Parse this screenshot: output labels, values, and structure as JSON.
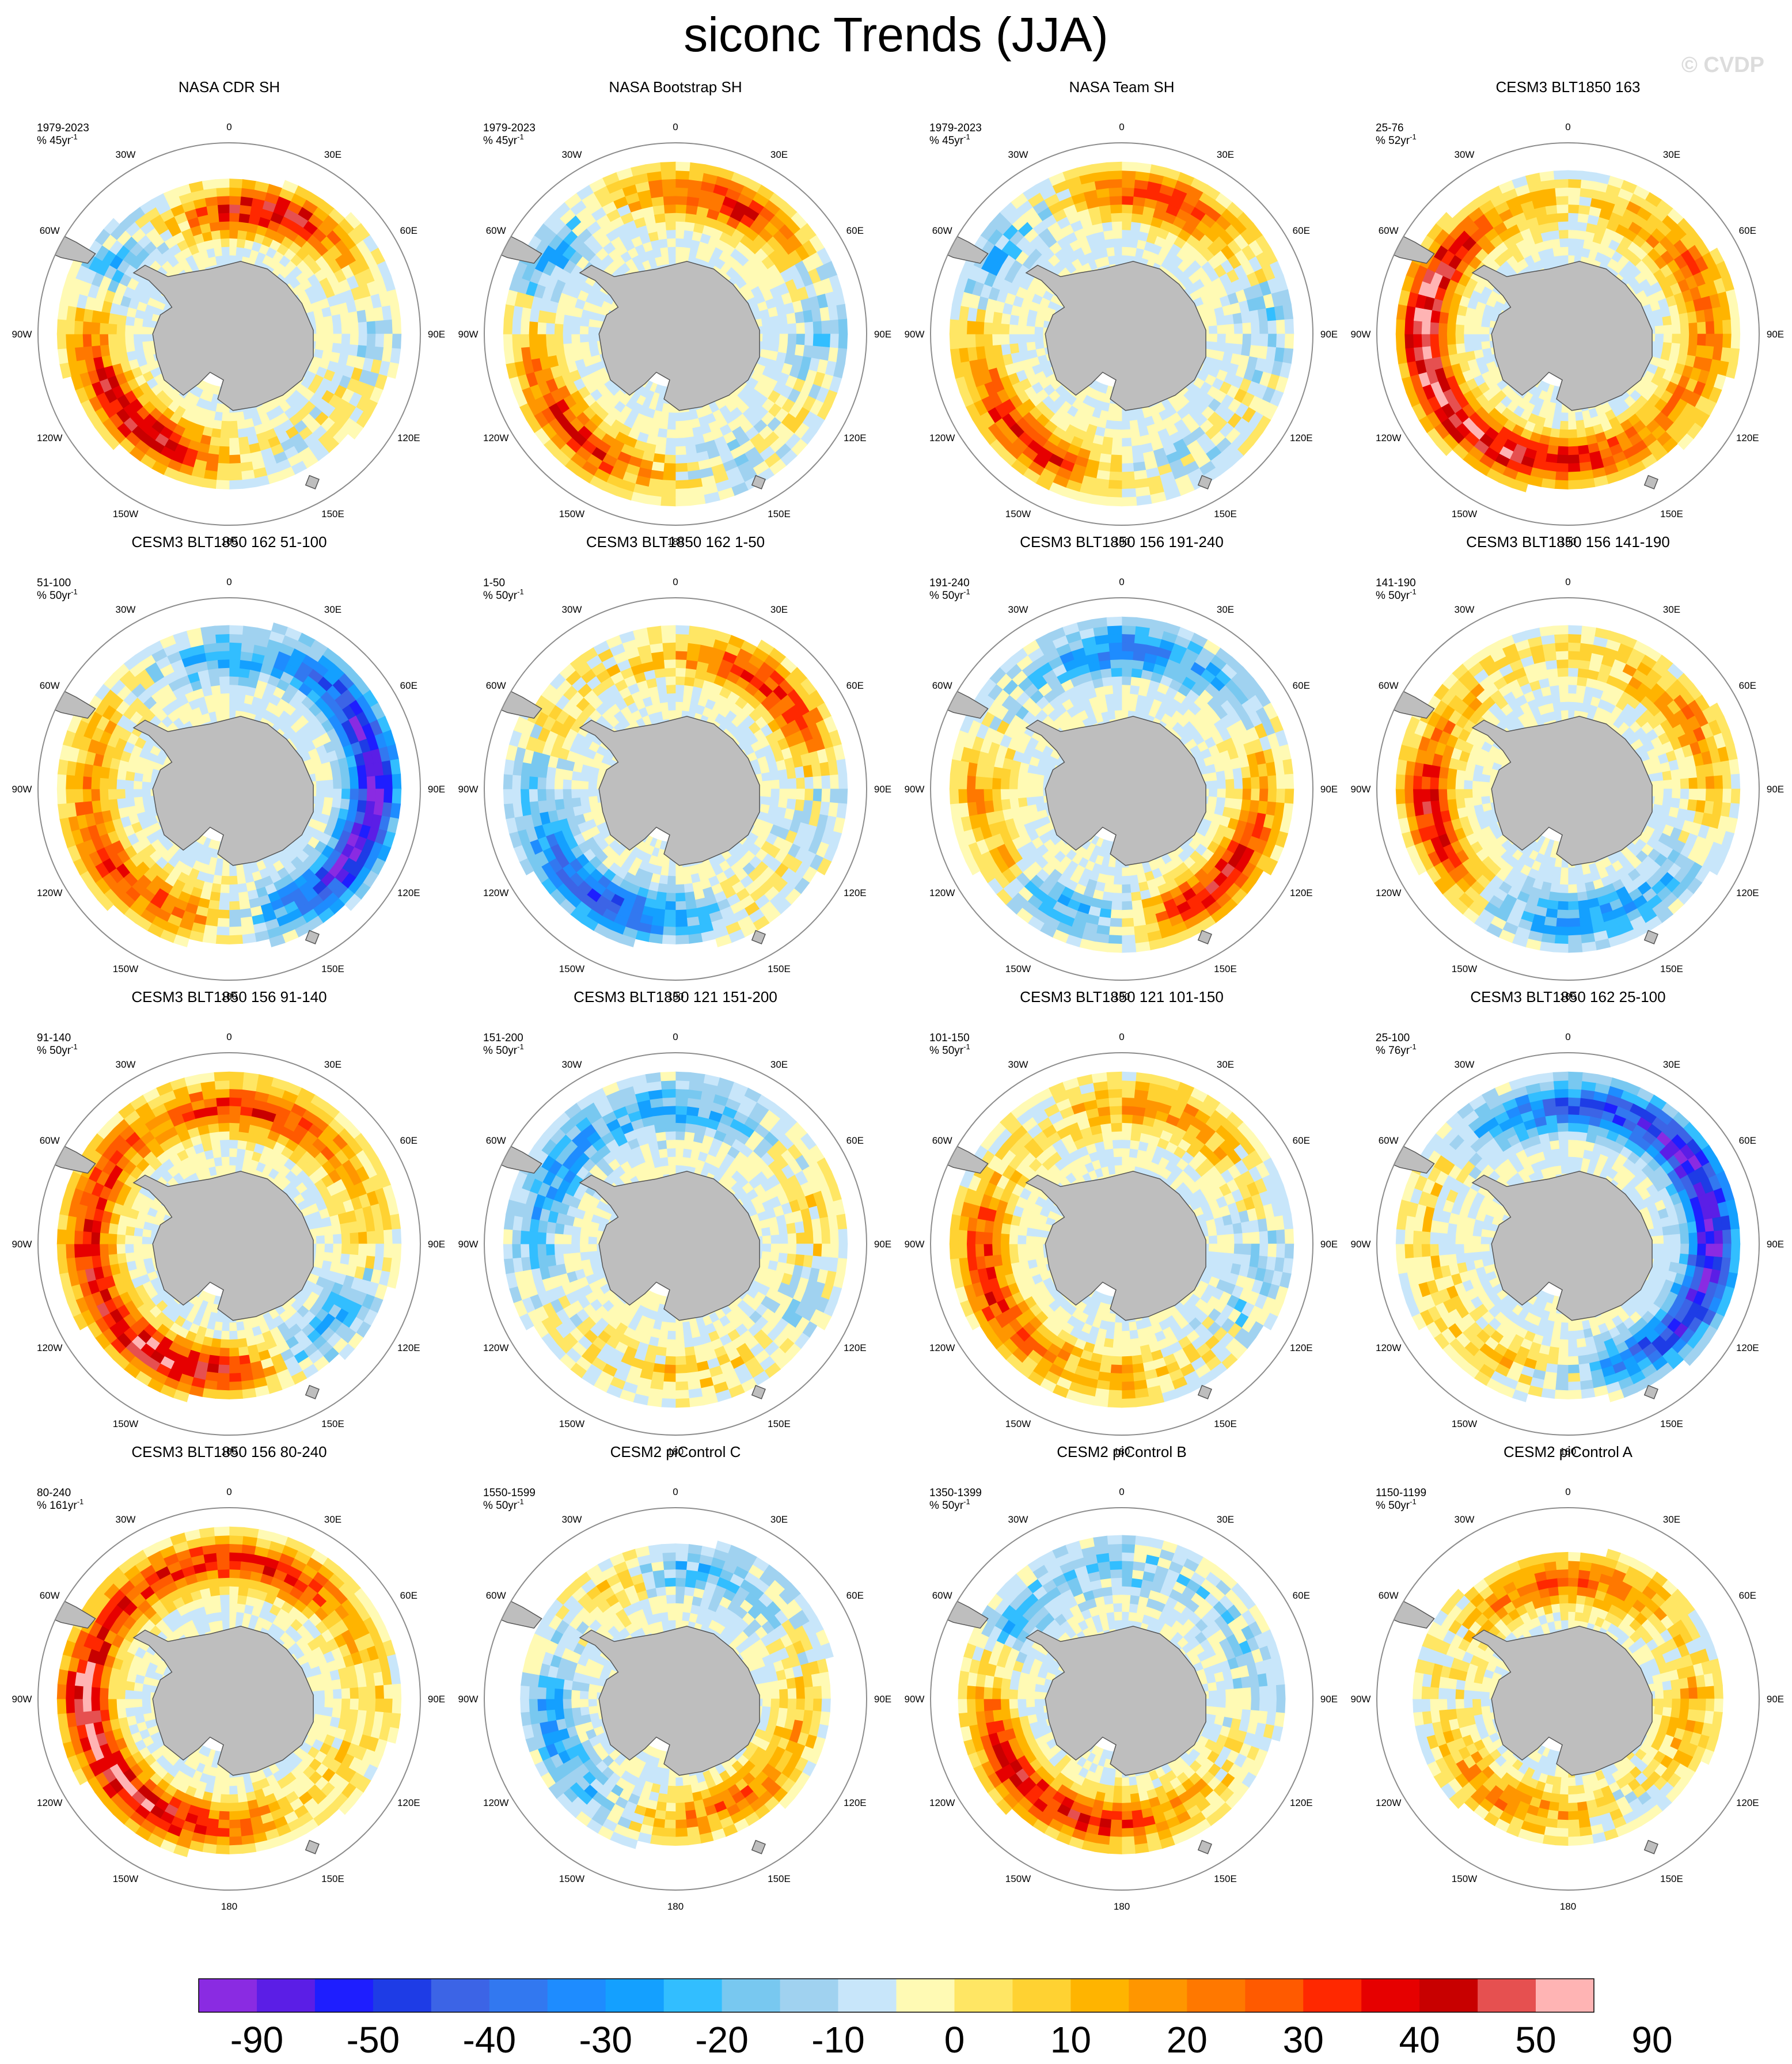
{
  "title": "siconc Trends (JJA)",
  "watermark": "© CVDP",
  "chart_data": {
    "type": "heatmap",
    "projection": "south-polar-stereographic",
    "variable": "siconc",
    "season": "JJA",
    "longitude_labels": [
      "0",
      "30E",
      "60E",
      "90E",
      "120E",
      "150E",
      "180",
      "150W",
      "120W",
      "90W",
      "60W",
      "30W"
    ],
    "colorbar": {
      "levels": [
        "-90",
        "-50",
        "-40",
        "-30",
        "-20",
        "-10",
        "0",
        "10",
        "20",
        "30",
        "40",
        "50",
        "90"
      ],
      "colors": [
        "#8a2be2",
        "#5b1ee6",
        "#1e1eff",
        "#1e3ce6",
        "#3c64e6",
        "#3278f0",
        "#1e8cff",
        "#14a0ff",
        "#32beff",
        "#78c8f0",
        "#a0d2f0",
        "#c8e6fa",
        "#fffab4",
        "#ffe664",
        "#ffd232",
        "#ffb400",
        "#ff9600",
        "#ff7800",
        "#ff5a00",
        "#ff2800",
        "#e60000",
        "#c80000",
        "#e65050",
        "#ffb4b4"
      ]
    },
    "panels": [
      {
        "title": "NASA CDR SH",
        "period": "1979-2023",
        "units": "% 45yr",
        "units_sup": "-1",
        "pattern": {
          "gain": [
            0.9,
            0.9,
            0.4,
            0.3,
            0.2,
            0.1,
            0.3,
            0.9,
            0.9,
            0.5,
            0.2,
            0.6
          ],
          "loss": [
            0.2,
            0.1,
            0.2,
            0.4,
            0.1,
            0.1,
            0.1,
            0.1,
            0.1,
            0.1,
            0.5,
            0.5
          ],
          "extent": [
            0.8,
            0.85,
            0.9,
            0.9,
            0.85,
            0.8,
            0.8,
            0.82,
            0.85,
            0.9,
            0.88,
            0.8
          ],
          "wave": 1
        }
      },
      {
        "title": "NASA Bootstrap SH",
        "period": "1979-2023",
        "units": "% 45yr",
        "units_sup": "-1",
        "pattern": {
          "gain": [
            0.8,
            0.9,
            0.4,
            0.3,
            0.3,
            0.1,
            0.3,
            0.8,
            0.8,
            0.4,
            0.2,
            0.5
          ],
          "loss": [
            0.3,
            0.2,
            0.3,
            0.5,
            0.2,
            0.2,
            0.2,
            0.2,
            0.2,
            0.2,
            0.5,
            0.5
          ],
          "extent": [
            0.9,
            0.9,
            0.92,
            0.92,
            0.9,
            0.88,
            0.88,
            0.9,
            0.9,
            0.92,
            0.92,
            0.9
          ],
          "wave": 2
        }
      },
      {
        "title": "NASA Team SH",
        "period": "1979-2023",
        "units": "% 45yr",
        "units_sup": "-1",
        "pattern": {
          "gain": [
            0.8,
            0.8,
            0.4,
            0.3,
            0.3,
            0.1,
            0.3,
            0.8,
            0.8,
            0.4,
            0.2,
            0.5
          ],
          "loss": [
            0.3,
            0.2,
            0.3,
            0.5,
            0.2,
            0.2,
            0.2,
            0.2,
            0.2,
            0.2,
            0.5,
            0.5
          ],
          "extent": [
            0.9,
            0.9,
            0.92,
            0.92,
            0.9,
            0.88,
            0.88,
            0.9,
            0.9,
            0.92,
            0.92,
            0.9
          ],
          "wave": 3
        }
      },
      {
        "title": "CESM3 BLT1850 163",
        "period": "25-76",
        "units": "% 52yr",
        "units_sup": "-1",
        "pattern": {
          "gain": [
            0.5,
            0.6,
            0.6,
            0.5,
            0.5,
            0.7,
            0.8,
            0.9,
            1.0,
            1.0,
            0.9,
            0.6
          ],
          "loss": [
            0.4,
            0.3,
            0.1,
            0.1,
            0.1,
            0.2,
            0.1,
            0.1,
            0.1,
            0.1,
            0.1,
            0.3
          ],
          "extent": [
            0.85,
            0.85,
            0.88,
            0.9,
            0.85,
            0.82,
            0.82,
            0.85,
            0.9,
            0.92,
            0.9,
            0.85
          ],
          "wave": 4
        }
      },
      {
        "title": "CESM3 BLT1850 162 51-100",
        "period": "51-100",
        "units": "% 50yr",
        "units_sup": "-1",
        "pattern": {
          "gain": [
            0.3,
            0.3,
            0.1,
            0.1,
            0.1,
            0.2,
            0.5,
            0.8,
            0.8,
            0.7,
            0.5,
            0.4
          ],
          "loss": [
            0.6,
            0.7,
            0.9,
            1.0,
            1.0,
            0.7,
            0.4,
            0.3,
            0.2,
            0.3,
            0.3,
            0.5
          ],
          "extent": [
            0.85,
            0.9,
            0.92,
            0.92,
            0.9,
            0.85,
            0.82,
            0.85,
            0.9,
            0.9,
            0.88,
            0.85
          ],
          "wave": 5
        }
      },
      {
        "title": "CESM3 BLT1850 162 1-50",
        "period": "1-50",
        "units": "% 50yr",
        "units_sup": "-1",
        "pattern": {
          "gain": [
            0.5,
            0.8,
            0.8,
            0.4,
            0.3,
            0.4,
            0.3,
            0.2,
            0.2,
            0.3,
            0.4,
            0.4
          ],
          "loss": [
            0.3,
            0.2,
            0.2,
            0.4,
            0.3,
            0.3,
            0.7,
            0.9,
            0.7,
            0.5,
            0.3,
            0.3
          ],
          "extent": [
            0.85,
            0.88,
            0.9,
            0.9,
            0.88,
            0.85,
            0.82,
            0.85,
            0.88,
            0.88,
            0.88,
            0.85
          ],
          "wave": 6
        }
      },
      {
        "title": "CESM3 BLT1850 156 191-240",
        "period": "191-240",
        "units": "% 50yr",
        "units_sup": "-1",
        "pattern": {
          "gain": [
            0.3,
            0.3,
            0.3,
            0.5,
            0.9,
            0.9,
            0.4,
            0.3,
            0.5,
            0.6,
            0.4,
            0.3
          ],
          "loss": [
            0.8,
            0.6,
            0.3,
            0.2,
            0.2,
            0.2,
            0.5,
            0.6,
            0.3,
            0.2,
            0.4,
            0.5
          ],
          "extent": [
            0.9,
            0.9,
            0.9,
            0.9,
            0.88,
            0.85,
            0.85,
            0.85,
            0.88,
            0.9,
            0.88,
            0.88
          ],
          "wave": 7
        }
      },
      {
        "title": "CESM3 BLT1850 156 141-190",
        "period": "141-190",
        "units": "% 50yr",
        "units_sup": "-1",
        "pattern": {
          "gain": [
            0.4,
            0.5,
            0.6,
            0.5,
            0.3,
            0.3,
            0.3,
            0.4,
            0.8,
            0.9,
            0.7,
            0.4
          ],
          "loss": [
            0.3,
            0.3,
            0.2,
            0.3,
            0.4,
            0.6,
            0.7,
            0.5,
            0.2,
            0.2,
            0.4,
            0.3
          ],
          "extent": [
            0.85,
            0.85,
            0.88,
            0.9,
            0.88,
            0.85,
            0.85,
            0.85,
            0.88,
            0.9,
            0.88,
            0.85
          ],
          "wave": 8
        }
      },
      {
        "title": "CESM3 BLT1850 156 91-140",
        "period": "91-140",
        "units": "% 50yr",
        "units_sup": "-1",
        "pattern": {
          "gain": [
            0.8,
            0.8,
            0.6,
            0.5,
            0.3,
            0.4,
            0.9,
            1.0,
            0.9,
            0.9,
            0.8,
            0.7
          ],
          "loss": [
            0.2,
            0.2,
            0.3,
            0.3,
            0.6,
            0.5,
            0.2,
            0.1,
            0.2,
            0.2,
            0.2,
            0.3
          ],
          "extent": [
            0.88,
            0.88,
            0.88,
            0.9,
            0.85,
            0.82,
            0.82,
            0.85,
            0.88,
            0.9,
            0.9,
            0.88
          ],
          "wave": 9
        }
      },
      {
        "title": "CESM3 BLT1850 121 151-200",
        "period": "151-200",
        "units": "% 50yr",
        "units_sup": "-1",
        "pattern": {
          "gain": [
            0.3,
            0.3,
            0.5,
            0.5,
            0.4,
            0.5,
            0.6,
            0.6,
            0.5,
            0.4,
            0.3,
            0.3
          ],
          "loss": [
            0.6,
            0.5,
            0.4,
            0.4,
            0.5,
            0.4,
            0.4,
            0.5,
            0.5,
            0.6,
            0.7,
            0.6
          ],
          "extent": [
            0.88,
            0.9,
            0.9,
            0.9,
            0.88,
            0.85,
            0.85,
            0.85,
            0.88,
            0.9,
            0.88,
            0.88
          ],
          "wave": 10
        }
      },
      {
        "title": "CESM3 BLT1850 121 101-150",
        "period": "101-150",
        "units": "% 50yr",
        "units_sup": "-1",
        "pattern": {
          "gain": [
            0.6,
            0.7,
            0.5,
            0.4,
            0.4,
            0.5,
            0.6,
            0.6,
            0.8,
            0.8,
            0.6,
            0.5
          ],
          "loss": [
            0.3,
            0.3,
            0.4,
            0.5,
            0.5,
            0.4,
            0.3,
            0.3,
            0.2,
            0.2,
            0.4,
            0.4
          ],
          "extent": [
            0.88,
            0.9,
            0.9,
            0.9,
            0.88,
            0.85,
            0.85,
            0.85,
            0.88,
            0.9,
            0.88,
            0.88
          ],
          "wave": 11
        }
      },
      {
        "title": "CESM3 BLT1850 162 25-100",
        "period": "25-100",
        "units": "% 76yr",
        "units_sup": "-1",
        "pattern": {
          "gain": [
            0.3,
            0.2,
            0.1,
            0.1,
            0.1,
            0.2,
            0.4,
            0.5,
            0.5,
            0.4,
            0.4,
            0.3
          ],
          "loss": [
            0.9,
            0.9,
            1.0,
            1.0,
            0.9,
            0.7,
            0.4,
            0.3,
            0.3,
            0.3,
            0.3,
            0.6
          ],
          "extent": [
            0.88,
            0.9,
            0.92,
            0.92,
            0.9,
            0.85,
            0.82,
            0.85,
            0.88,
            0.9,
            0.9,
            0.88
          ],
          "wave": 12
        }
      },
      {
        "title": "CESM3 BLT1850 156 80-240",
        "period": "80-240",
        "units": "% 161yr",
        "units_sup": "-1",
        "pattern": {
          "gain": [
            0.8,
            0.8,
            0.6,
            0.5,
            0.5,
            0.5,
            0.7,
            0.9,
            0.9,
            1.0,
            0.8,
            0.8
          ],
          "loss": [
            0.2,
            0.2,
            0.3,
            0.3,
            0.3,
            0.3,
            0.2,
            0.1,
            0.1,
            0.1,
            0.2,
            0.2
          ],
          "extent": [
            0.88,
            0.88,
            0.9,
            0.9,
            0.85,
            0.82,
            0.82,
            0.85,
            0.88,
            0.92,
            0.9,
            0.88
          ],
          "wave": 13
        }
      },
      {
        "title": "CESM2 piControl C",
        "period": "1550-1599",
        "units": "% 50yr",
        "units_sup": "-1",
        "pattern": {
          "gain": [
            0.3,
            0.3,
            0.4,
            0.5,
            0.6,
            0.7,
            0.6,
            0.4,
            0.3,
            0.3,
            0.5,
            0.6
          ],
          "loss": [
            0.5,
            0.5,
            0.4,
            0.3,
            0.2,
            0.2,
            0.3,
            0.5,
            0.6,
            0.6,
            0.5,
            0.4
          ],
          "extent": [
            0.82,
            0.85,
            0.85,
            0.82,
            0.8,
            0.78,
            0.78,
            0.8,
            0.82,
            0.82,
            0.8,
            0.8
          ],
          "wave": 14
        }
      },
      {
        "title": "CESM2 piControl B",
        "period": "1350-1399",
        "units": "% 50yr",
        "units_sup": "-1",
        "pattern": {
          "gain": [
            0.4,
            0.4,
            0.3,
            0.3,
            0.4,
            0.6,
            0.8,
            0.9,
            0.9,
            0.7,
            0.4,
            0.4
          ],
          "loss": [
            0.6,
            0.5,
            0.4,
            0.4,
            0.3,
            0.3,
            0.2,
            0.2,
            0.2,
            0.3,
            0.6,
            0.6
          ],
          "extent": [
            0.85,
            0.85,
            0.85,
            0.85,
            0.82,
            0.8,
            0.8,
            0.82,
            0.85,
            0.85,
            0.85,
            0.85
          ],
          "wave": 15
        }
      },
      {
        "title": "CESM2 piControl A",
        "period": "1150-1199",
        "units": "% 50yr",
        "units_sup": "-1",
        "pattern": {
          "gain": [
            0.8,
            0.7,
            0.5,
            0.6,
            0.5,
            0.4,
            0.6,
            0.7,
            0.6,
            0.5,
            0.5,
            0.7
          ],
          "loss": [
            0.3,
            0.3,
            0.4,
            0.3,
            0.3,
            0.4,
            0.3,
            0.3,
            0.3,
            0.4,
            0.4,
            0.3
          ],
          "extent": [
            0.78,
            0.8,
            0.82,
            0.82,
            0.78,
            0.75,
            0.75,
            0.78,
            0.8,
            0.8,
            0.8,
            0.78
          ],
          "wave": 16
        }
      }
    ]
  }
}
